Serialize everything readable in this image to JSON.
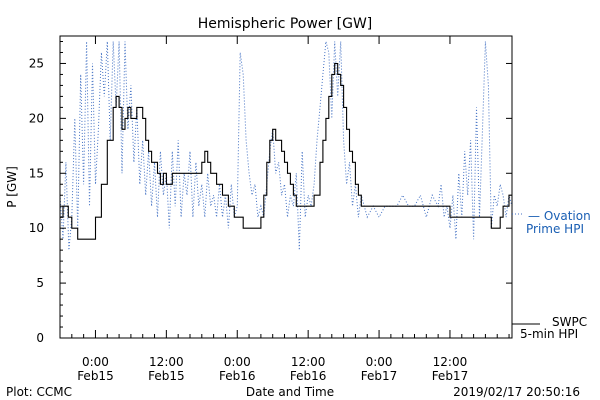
{
  "chart_data": {
    "type": "line",
    "title": "Hemispheric Power [GW]",
    "xlabel": "Date and Time",
    "ylabel": "P [GW]",
    "ylim": [
      0,
      27.5
    ],
    "xlim_hours": [
      -6,
      70.5
    ],
    "y_ticks": [
      0,
      5,
      10,
      15,
      20,
      25
    ],
    "x_ticks": [
      {
        "hour": 0,
        "time": "0:00",
        "date": "Feb15"
      },
      {
        "hour": 12,
        "time": "12:00",
        "date": "Feb15"
      },
      {
        "hour": 24,
        "time": "0:00",
        "date": "Feb16"
      },
      {
        "hour": 36,
        "time": "12:00",
        "date": "Feb16"
      },
      {
        "hour": 48,
        "time": "0:00",
        "date": "Feb17"
      },
      {
        "hour": 60,
        "time": "12:00",
        "date": "Feb17"
      }
    ],
    "series": [
      {
        "name": "SWPC 5-min HPI",
        "color": "#000000",
        "style": "solid",
        "x": [
          -6,
          -5.5,
          -5,
          -4.6,
          -4,
          -3,
          -2,
          -1,
          0,
          1,
          2,
          3,
          3.5,
          4,
          4.5,
          5,
          5.5,
          6,
          6.5,
          7,
          7.5,
          8,
          8.5,
          9,
          9.5,
          10,
          10.5,
          11,
          11.5,
          12,
          13,
          14,
          15,
          16,
          17,
          18,
          18.5,
          19,
          19.5,
          20,
          20.5,
          21,
          21.5,
          22,
          22.5,
          23,
          23.5,
          24,
          25,
          26,
          27,
          28,
          28.5,
          29,
          29.5,
          30,
          30.5,
          31,
          31.5,
          32,
          32.5,
          33,
          33.5,
          34,
          35,
          36,
          37,
          38,
          38.5,
          39,
          39.5,
          40,
          40.5,
          41,
          41.5,
          42,
          42.5,
          43,
          43.5,
          44,
          44.5,
          45,
          46,
          47,
          48,
          50,
          52,
          54,
          56,
          58,
          60,
          61,
          62,
          64,
          66,
          67,
          67.5,
          68,
          68.5,
          69,
          69.5,
          70,
          70.5
        ],
        "y": [
          11,
          12,
          12,
          11,
          10,
          9,
          9,
          9,
          11,
          14,
          18,
          21,
          22,
          21,
          19,
          20,
          21,
          20,
          20,
          21,
          21,
          20,
          18,
          17,
          16,
          16,
          15,
          14,
          15,
          14,
          15,
          15,
          15,
          15,
          15,
          16,
          17,
          16,
          15,
          15,
          14,
          14,
          13,
          13,
          12,
          12,
          11,
          11,
          10,
          10,
          10,
          11,
          13,
          16,
          18,
          19,
          18,
          18,
          17,
          16,
          15,
          14,
          13,
          12,
          12,
          12,
          13,
          16,
          18,
          20,
          22,
          24,
          25,
          24,
          23,
          21,
          19,
          17,
          16,
          14,
          13,
          12,
          12,
          12,
          12,
          12,
          12,
          12,
          12,
          12,
          11,
          11,
          11,
          11,
          11,
          10,
          10,
          10,
          11,
          12,
          12,
          13,
          13
        ]
      },
      {
        "name": "Ovation Prime HPI",
        "color": "#4472c4",
        "style": "dotted",
        "x": [
          -6,
          -5.5,
          -5,
          -4.5,
          -4,
          -3.5,
          -3,
          -2.5,
          -2,
          -1.5,
          -1,
          -0.5,
          0,
          0.5,
          1,
          1.5,
          2,
          2.5,
          3,
          3.5,
          4,
          4.5,
          5,
          5.5,
          6,
          6.5,
          7,
          7.5,
          8,
          8.5,
          9,
          9.5,
          10,
          10.5,
          11,
          11.5,
          12,
          12.5,
          13,
          13.5,
          14,
          14.5,
          15,
          15.5,
          16,
          16.5,
          17,
          17.5,
          18,
          18.5,
          19,
          19.5,
          20,
          20.5,
          21,
          21.5,
          22,
          22.5,
          23,
          23.5,
          24,
          24.5,
          25,
          25.5,
          26,
          26.5,
          27,
          27.5,
          28,
          28.5,
          29,
          29.5,
          30,
          30.5,
          31,
          31.5,
          32,
          32.5,
          33,
          33.5,
          34,
          34.5,
          35,
          35.5,
          36,
          36.5,
          37,
          37.5,
          38,
          38.5,
          39,
          39.5,
          40,
          40.5,
          41,
          41.5,
          42,
          42.5,
          43,
          43.5,
          44,
          44.5,
          45,
          45.5,
          46,
          47,
          48,
          49,
          50,
          51,
          52,
          53,
          54,
          55,
          56,
          57,
          58,
          58.5,
          59,
          59.5,
          60,
          60.5,
          61,
          61.5,
          62,
          62.5,
          63,
          63.5,
          64,
          64.5,
          65,
          65.5,
          66,
          66.5,
          67,
          67.5,
          68,
          68.5,
          69,
          69.5,
          70,
          70.5
        ],
        "y": [
          13,
          9,
          16,
          8,
          11,
          20,
          10,
          24,
          14,
          27,
          12,
          25,
          14,
          19,
          26,
          22,
          27,
          18,
          27,
          21,
          27,
          15,
          27,
          19,
          23,
          16,
          21,
          14,
          18,
          13,
          17,
          12,
          16,
          11,
          17,
          13,
          15,
          10,
          17,
          12,
          18,
          11,
          15,
          13,
          17,
          11,
          16,
          12,
          14,
          11,
          15,
          12,
          13,
          11,
          14,
          11,
          13,
          10,
          14,
          11,
          12,
          26,
          24,
          18,
          15,
          13,
          14,
          11,
          12,
          11,
          14,
          17,
          19,
          15,
          16,
          13,
          14,
          11,
          13,
          12,
          15,
          8,
          17,
          11,
          13,
          12,
          14,
          18,
          21,
          24,
          27,
          26,
          20,
          27,
          22,
          27,
          18,
          14,
          16,
          12,
          14,
          11,
          13,
          12,
          11,
          12,
          11,
          12,
          12,
          12,
          13,
          12,
          12,
          13,
          11,
          13,
          12,
          14,
          11,
          12,
          10,
          13,
          9,
          15,
          11,
          17,
          13,
          18,
          9,
          21,
          11,
          19,
          27,
          23,
          10,
          13,
          12,
          14,
          13,
          11,
          13,
          12
        ]
      }
    ]
  },
  "legend": {
    "ovation_line1": "— Ovation",
    "ovation_line2": "Prime HPI",
    "swpc_line1": "SWPC",
    "swpc_line2": "5-min HPI"
  },
  "footer": {
    "plot_credit": "Plot: CCMC",
    "timestamp": "2019/02/17 20:50:16"
  }
}
